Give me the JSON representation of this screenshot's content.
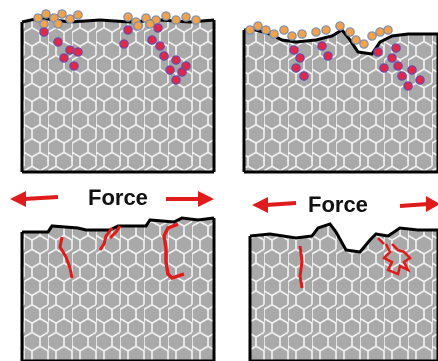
{
  "labels": {
    "force_left": "Force",
    "force_right": "Force"
  },
  "colors": {
    "grain_fill": "#a9a9a9",
    "grain_edge": "#f4f4f4",
    "frame": "#000000",
    "surface_atom": "#f2a24a",
    "surface_atom_edge": "#7a8fb0",
    "diffusing_atom": "#e0284a",
    "diffusing_atom_edge": "#6b4aa8",
    "crack": "#e01b1b",
    "arrow": "#e01b1b"
  },
  "icons": [
    "left-arrow-icon",
    "right-arrow-icon"
  ]
}
